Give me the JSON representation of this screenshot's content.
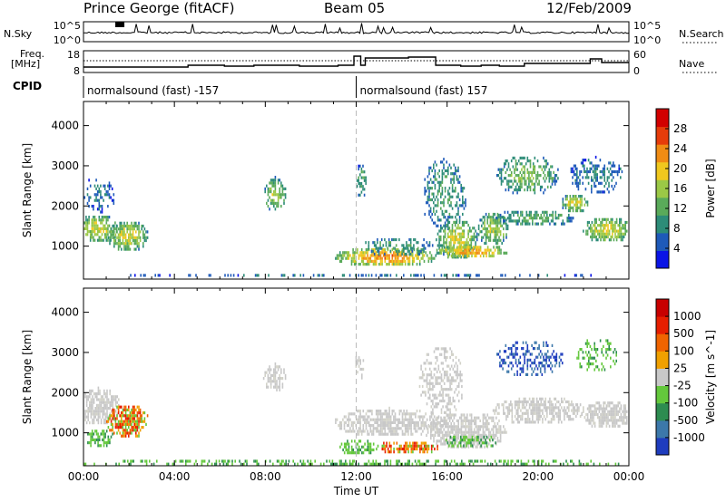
{
  "header": {
    "station": "Prince George (fitACF)",
    "beam": "Beam 05",
    "date": "12/Feb/2009"
  },
  "strip_labels": {
    "nsky": "N.Sky",
    "nsearch": "N.Search",
    "freq_line1": "Freq.",
    "freq_line2": "[MHz]",
    "nave": "Nave",
    "cpid": "CPID",
    "left_ticks_nsky": [
      "10^5",
      "10^0"
    ],
    "right_ticks_nsky": [
      "10^5",
      "10^0"
    ],
    "left_ticks_freq": [
      "18",
      "8"
    ],
    "right_ticks_nave": [
      "60",
      "0"
    ]
  },
  "cpid_segments": [
    {
      "label": "normalsound (fast) -157",
      "start": 0,
      "end": 12
    },
    {
      "label": "normalsound (fast) 157",
      "start": 12,
      "end": 24
    }
  ],
  "chart_data": [
    {
      "type": "heatmap",
      "name": "power",
      "ylabel": "Slant Range [km]",
      "xlabel": "Time UT",
      "xlim": [
        0,
        24
      ],
      "ylim": [
        180,
        4600
      ],
      "x_ticks": [
        "00:00",
        "04:00",
        "08:00",
        "12:00",
        "16:00",
        "20:00",
        "00:00"
      ],
      "y_ticks": [
        "1000",
        "2000",
        "3000",
        "4000"
      ],
      "y_tick_values": [
        1000,
        2000,
        3000,
        4000
      ],
      "colorbar": {
        "label": "Power [dB]",
        "ticks": [
          "4",
          "8",
          "12",
          "16",
          "20",
          "24",
          "28"
        ],
        "tick_values": [
          4,
          8,
          12,
          16,
          20,
          24,
          28
        ],
        "range": [
          0,
          32
        ],
        "colors": [
          "#0a14e6",
          "#1e5ab9",
          "#2d8c78",
          "#5aaa5a",
          "#9bc846",
          "#f0c81e",
          "#f08c14",
          "#e63c0a",
          "#d20000"
        ]
      },
      "blobs": [
        {
          "t": 0.6,
          "r": 1500,
          "dt": 0.9,
          "dr": 330,
          "val": 18,
          "prob": 0.8
        },
        {
          "t": 1.9,
          "r": 1300,
          "dt": 0.9,
          "dr": 380,
          "val": 18,
          "prob": 0.82
        },
        {
          "t": 0.5,
          "r": 2300,
          "dt": 0.8,
          "dr": 450,
          "val": 6,
          "prob": 0.35
        },
        {
          "t": 8.4,
          "r": 2350,
          "dt": 0.5,
          "dr": 400,
          "val": 16,
          "prob": 0.75
        },
        {
          "t": 12.2,
          "r": 2700,
          "dt": 0.25,
          "dr": 400,
          "val": 10,
          "prob": 0.6
        },
        {
          "t": 13.3,
          "r": 800,
          "dt": 2.3,
          "dr": 220,
          "val": 24,
          "prob": 0.85
        },
        {
          "t": 13.8,
          "r": 1050,
          "dt": 1.6,
          "dr": 220,
          "val": 10,
          "prob": 0.5
        },
        {
          "t": 15.8,
          "r": 2300,
          "dt": 1.0,
          "dr": 900,
          "val": 10,
          "prob": 0.45
        },
        {
          "t": 16.4,
          "r": 1200,
          "dt": 0.9,
          "dr": 500,
          "val": 18,
          "prob": 0.8
        },
        {
          "t": 17.0,
          "r": 900,
          "dt": 1.6,
          "dr": 180,
          "val": 24,
          "prob": 0.85
        },
        {
          "t": 18.0,
          "r": 1500,
          "dt": 0.7,
          "dr": 400,
          "val": 16,
          "prob": 0.75
        },
        {
          "t": 19.8,
          "r": 1750,
          "dt": 1.8,
          "dr": 200,
          "val": 12,
          "prob": 0.7
        },
        {
          "t": 19.5,
          "r": 2800,
          "dt": 1.4,
          "dr": 500,
          "val": 14,
          "prob": 0.55
        },
        {
          "t": 21.6,
          "r": 2100,
          "dt": 0.6,
          "dr": 250,
          "val": 18,
          "prob": 0.75
        },
        {
          "t": 23.0,
          "r": 1450,
          "dt": 1.1,
          "dr": 320,
          "val": 18,
          "prob": 0.85
        },
        {
          "t": 22.5,
          "r": 2800,
          "dt": 1.2,
          "dr": 450,
          "val": 8,
          "prob": 0.45
        },
        {
          "t": 12.0,
          "r": 240,
          "dt": 12.0,
          "dr": 140,
          "val": 6,
          "prob": 0.4
        }
      ]
    },
    {
      "type": "heatmap",
      "name": "velocity",
      "ylabel": "Slant Range [km]",
      "xlabel": "Time UT",
      "xlim": [
        0,
        24
      ],
      "ylim": [
        180,
        4600
      ],
      "x_ticks": [
        "00:00",
        "04:00",
        "08:00",
        "12:00",
        "16:00",
        "20:00",
        "00:00"
      ],
      "y_ticks": [
        "1000",
        "2000",
        "3000",
        "4000"
      ],
      "y_tick_values": [
        1000,
        2000,
        3000,
        4000
      ],
      "colorbar": {
        "label": "Velocity [m s^-1]",
        "ticks": [
          "1000",
          "500",
          "100",
          "25",
          "-25",
          "-100",
          "-500",
          "-1000"
        ],
        "colors": [
          "#1e3cbe",
          "#3c78aa",
          "#2d8c50",
          "#64c83c",
          "#c8c8c8",
          "#f0a000",
          "#f06400",
          "#e61e00",
          "#c80000"
        ]
      },
      "blobs": [
        {
          "t": 0.6,
          "r": 1700,
          "dt": 1.0,
          "dr": 450,
          "val": "gray",
          "prob": 0.85
        },
        {
          "t": 0.7,
          "r": 900,
          "dt": 0.6,
          "dr": 250,
          "val": "green",
          "prob": 0.7
        },
        {
          "t": 1.9,
          "r": 1350,
          "dt": 0.9,
          "dr": 400,
          "val": "orange",
          "prob": 0.85
        },
        {
          "t": 8.4,
          "r": 2400,
          "dt": 0.5,
          "dr": 350,
          "val": "gray",
          "prob": 0.75
        },
        {
          "t": 12.1,
          "r": 2700,
          "dt": 0.2,
          "dr": 350,
          "val": "gray",
          "prob": 0.5
        },
        {
          "t": 13.4,
          "r": 1300,
          "dt": 2.4,
          "dr": 350,
          "val": "gray",
          "prob": 0.8
        },
        {
          "t": 14.2,
          "r": 700,
          "dt": 1.4,
          "dr": 150,
          "val": "orange",
          "prob": 0.8
        },
        {
          "t": 12.0,
          "r": 700,
          "dt": 0.8,
          "dr": 200,
          "val": "green",
          "prob": 0.6
        },
        {
          "t": 15.7,
          "r": 2300,
          "dt": 1.0,
          "dr": 900,
          "val": "gray",
          "prob": 0.5
        },
        {
          "t": 16.8,
          "r": 1100,
          "dt": 1.8,
          "dr": 450,
          "val": "gray",
          "prob": 0.85
        },
        {
          "t": 17.0,
          "r": 850,
          "dt": 1.2,
          "dr": 150,
          "val": "green",
          "prob": 0.6
        },
        {
          "t": 20.0,
          "r": 1600,
          "dt": 2.0,
          "dr": 350,
          "val": "gray",
          "prob": 0.75
        },
        {
          "t": 19.6,
          "r": 2900,
          "dt": 1.5,
          "dr": 450,
          "val": "blue",
          "prob": 0.45
        },
        {
          "t": 23.0,
          "r": 1500,
          "dt": 1.1,
          "dr": 350,
          "val": "gray",
          "prob": 0.85
        },
        {
          "t": 22.5,
          "r": 3000,
          "dt": 1.0,
          "dr": 400,
          "val": "green",
          "prob": 0.35
        },
        {
          "t": 12.0,
          "r": 260,
          "dt": 12.0,
          "dr": 140,
          "val": "green",
          "prob": 0.45
        }
      ]
    }
  ]
}
